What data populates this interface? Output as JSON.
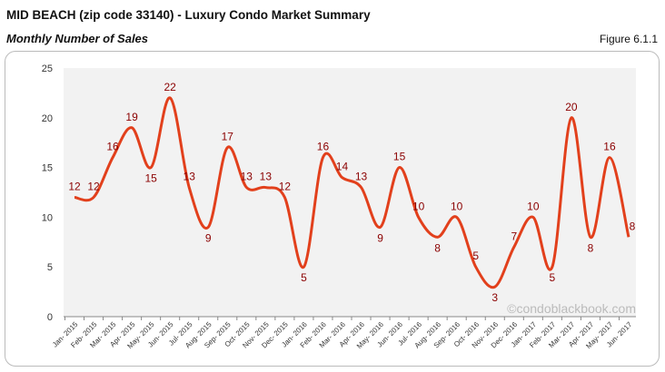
{
  "header": {
    "title": "MID BEACH (zip code 33140) - Luxury Condo Market Summary",
    "subtitle": "Monthly Number of Sales",
    "figure": "Figure 6.1.1"
  },
  "watermark": "©condoblackbook.com",
  "chart_data": {
    "type": "line",
    "categories": [
      "Jan- 2015",
      "Feb- 2015",
      "Mar- 2015",
      "Apr- 2015",
      "May- 2015",
      "Jun- 2015",
      "Jul- 2015",
      "Aug- 2015",
      "Sep- 2015",
      "Oct- 2015",
      "Nov- 2015",
      "Dec- 2015",
      "Jan- 2016",
      "Feb- 2016",
      "Mar- 2016",
      "Apr- 2016",
      "May- 2016",
      "Jun- 2016",
      "Jul- 2016",
      "Aug- 2016",
      "Sep- 2016",
      "Oct- 2016",
      "Nov- 2016",
      "Dec- 2016",
      "Jan- 2017",
      "Feb- 2017",
      "Mar- 2017",
      "Apr- 2017",
      "May- 2017",
      "Jun- 2017"
    ],
    "values": [
      12,
      12,
      16,
      19,
      15,
      22,
      13,
      9,
      17,
      13,
      13,
      12,
      5,
      16,
      14,
      13,
      9,
      15,
      10,
      8,
      10,
      5,
      3,
      7,
      10,
      5,
      20,
      8,
      16,
      8
    ],
    "ylim": [
      0,
      25
    ],
    "yticks": [
      0,
      5,
      10,
      15,
      20,
      25
    ],
    "grid": false,
    "line_color": "#e2401c",
    "label_color": "#8b0000",
    "plot_bg": "#f2f2f2"
  }
}
